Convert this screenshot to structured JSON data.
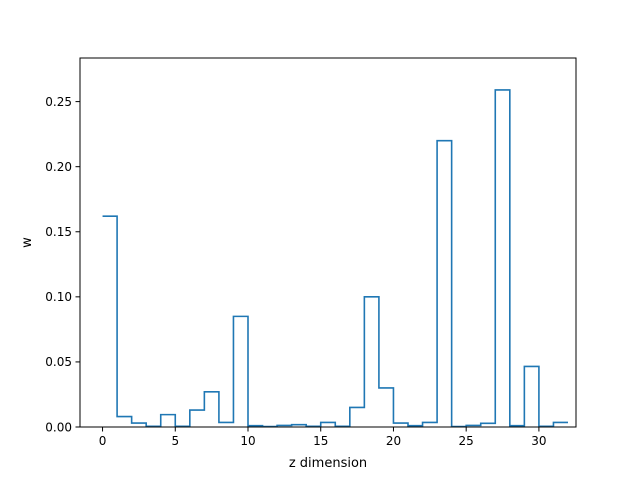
{
  "chart_data": {
    "type": "line",
    "step": "post",
    "title": "",
    "xlabel": "z dimension",
    "ylabel": "w",
    "xlim": [
      -1.55,
      32.55
    ],
    "ylim": [
      0,
      0.2835
    ],
    "xticks": [
      0,
      5,
      10,
      15,
      20,
      25,
      30
    ],
    "yticks": [
      0.0,
      0.05,
      0.1,
      0.15,
      0.2,
      0.25
    ],
    "xtick_labels": [
      "0",
      "5",
      "10",
      "15",
      "20",
      "25",
      "30"
    ],
    "ytick_labels": [
      "0.00",
      "0.05",
      "0.10",
      "0.15",
      "0.20",
      "0.25"
    ],
    "grid": false,
    "line_color": "#1f77b4",
    "series": [
      {
        "x": [
          0,
          1,
          2,
          3,
          4,
          5,
          6,
          7,
          8,
          9,
          10,
          11,
          12,
          13,
          14,
          15,
          16,
          17,
          18,
          19,
          20,
          21,
          22,
          23,
          24,
          25,
          26,
          27,
          28,
          29,
          30,
          31
        ],
        "values": [
          0.162,
          0.008,
          0.003,
          0.0005,
          0.0095,
          0.0005,
          0.013,
          0.027,
          0.0035,
          0.085,
          0.001,
          0.0003,
          0.0012,
          0.0018,
          0.0005,
          0.0035,
          0.0005,
          0.015,
          0.1,
          0.03,
          0.003,
          0.001,
          0.0035,
          0.22,
          0.0003,
          0.0012,
          0.0028,
          0.259,
          0.001,
          0.0465,
          0.0005,
          0.0035
        ]
      }
    ]
  }
}
